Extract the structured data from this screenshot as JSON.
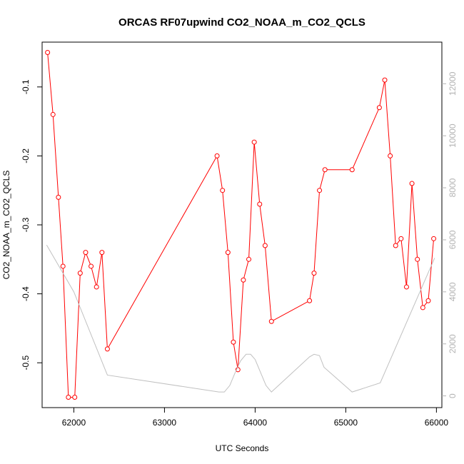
{
  "chart_data": {
    "type": "line",
    "title": "ORCAS RF07upwind CO2_NOAA_m_CO2_QCLS",
    "xlabel": "UTC Seconds",
    "ylabel": "CO2_NOAA_m_CO2_QCLS",
    "xlim": [
      61650,
      66060
    ],
    "ylim": [
      -0.565,
      -0.035
    ],
    "y2lim": [
      -450,
      13600
    ],
    "xticks": [
      62000,
      63000,
      64000,
      65000,
      66000
    ],
    "yticks": [
      -0.5,
      -0.4,
      -0.3,
      -0.2,
      -0.1
    ],
    "y2ticks": [
      0,
      2000,
      4000,
      6000,
      8000,
      10000,
      12000
    ],
    "colors": {
      "primary": "#ff0000",
      "secondary": "#c0c0c0",
      "axis": "#000000",
      "right_axis": "#b3b3b3"
    },
    "series": [
      {
        "axis": "left",
        "color": "#ff0000",
        "markers": true,
        "x": [
          61710,
          61770,
          61830,
          61880,
          61940,
          62010,
          62070,
          62130,
          62190,
          62250,
          62310,
          62370,
          63580,
          63640,
          63700,
          63760,
          63810,
          63870,
          63930,
          63990,
          64050,
          64110,
          64180,
          64600,
          64650,
          64710,
          64770,
          65070,
          65370,
          65430,
          65490,
          65550,
          65610,
          65670,
          65730,
          65790,
          65850,
          65910,
          65970
        ],
        "y": [
          -0.05,
          -0.14,
          -0.26,
          -0.36,
          -0.55,
          -0.55,
          -0.37,
          -0.34,
          -0.36,
          -0.39,
          -0.34,
          -0.48,
          -0.2,
          -0.25,
          -0.34,
          -0.47,
          -0.51,
          -0.38,
          -0.35,
          -0.18,
          -0.27,
          -0.33,
          -0.44,
          -0.41,
          -0.37,
          -0.25,
          -0.22,
          -0.22,
          -0.13,
          -0.09,
          -0.2,
          -0.33,
          -0.32,
          -0.39,
          -0.24,
          -0.35,
          -0.42,
          -0.41,
          -0.32
        ]
      },
      {
        "axis": "right",
        "color": "#c0c0c0",
        "markers": false,
        "x": [
          61700,
          62000,
          62370,
          63600,
          63660,
          63720,
          63780,
          63840,
          63900,
          63950,
          64000,
          64060,
          64120,
          64180,
          64600,
          64650,
          64710,
          64760,
          65070,
          65380,
          65980
        ],
        "y": [
          5800,
          4000,
          800,
          150,
          150,
          400,
          900,
          1350,
          1600,
          1600,
          1400,
          900,
          400,
          150,
          1500,
          1600,
          1550,
          1100,
          150,
          500,
          5300
        ]
      }
    ]
  }
}
